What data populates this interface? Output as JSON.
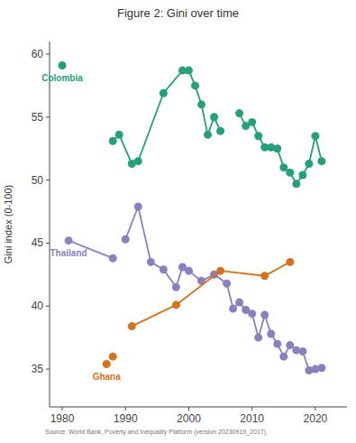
{
  "chart_data": {
    "type": "line",
    "title": "Figure 2: Gini over time",
    "y_label": "Gini index (0-100)",
    "source": "Source: World Bank, Poverty and Inequality Platform (version 20230919_2017).",
    "xlim": [
      1978,
      2025
    ],
    "xticks": [
      1980,
      1990,
      2000,
      2010,
      2020
    ],
    "ylim": [
      32,
      61
    ],
    "yticks": [
      35,
      40,
      45,
      50,
      55,
      60
    ],
    "grid": false,
    "series": [
      {
        "name": "Colombia",
        "color": "#24a07a",
        "marker": "circle",
        "line_style": "solid",
        "x": [
          1980,
          1984,
          1988,
          1989,
          1991,
          1992,
          1996,
          1999,
          2000,
          2001,
          2002,
          2003,
          2004,
          2005,
          2006,
          2008,
          2009,
          2010,
          2011,
          2012,
          2013,
          2014,
          2015,
          2016,
          2017,
          2018,
          2019,
          2020,
          2021
        ],
        "values": [
          59.1,
          null,
          53.1,
          53.6,
          51.3,
          51.5,
          56.9,
          58.7,
          58.7,
          57.5,
          56.0,
          53.6,
          55.0,
          53.9,
          null,
          55.3,
          54.3,
          54.6,
          53.5,
          52.6,
          52.6,
          52.5,
          51.0,
          50.6,
          49.7,
          50.4,
          51.3,
          53.5,
          51.5
        ]
      },
      {
        "name": "Thailand",
        "color": "#8a80bf",
        "marker": "circle",
        "line_style": "solid",
        "x": [
          1981,
          1988,
          1989,
          1990,
          1992,
          1994,
          1996,
          1998,
          1999,
          2000,
          2002,
          2004,
          2006,
          2007,
          2008,
          2009,
          2010,
          2011,
          2012,
          2013,
          2014,
          2015,
          2016,
          2017,
          2018,
          2019,
          2020,
          2021
        ],
        "values": [
          45.2,
          43.8,
          null,
          45.3,
          47.9,
          43.5,
          42.9,
          41.5,
          43.1,
          42.8,
          42.0,
          42.5,
          41.8,
          39.8,
          40.3,
          39.7,
          39.4,
          37.5,
          39.3,
          37.8,
          37.0,
          36.0,
          36.9,
          36.5,
          36.4,
          34.9,
          35.0,
          35.1
        ]
      },
      {
        "name": "Ghana",
        "color": "#d4731c",
        "marker": "circle",
        "line_style": "solid",
        "x": [
          1987,
          1987.5,
          1988,
          1989,
          1991,
          1998,
          2005,
          2012,
          2016
        ],
        "values": [
          35.4,
          null,
          36.0,
          null,
          38.4,
          40.1,
          42.8,
          42.4,
          43.5
        ]
      }
    ]
  }
}
